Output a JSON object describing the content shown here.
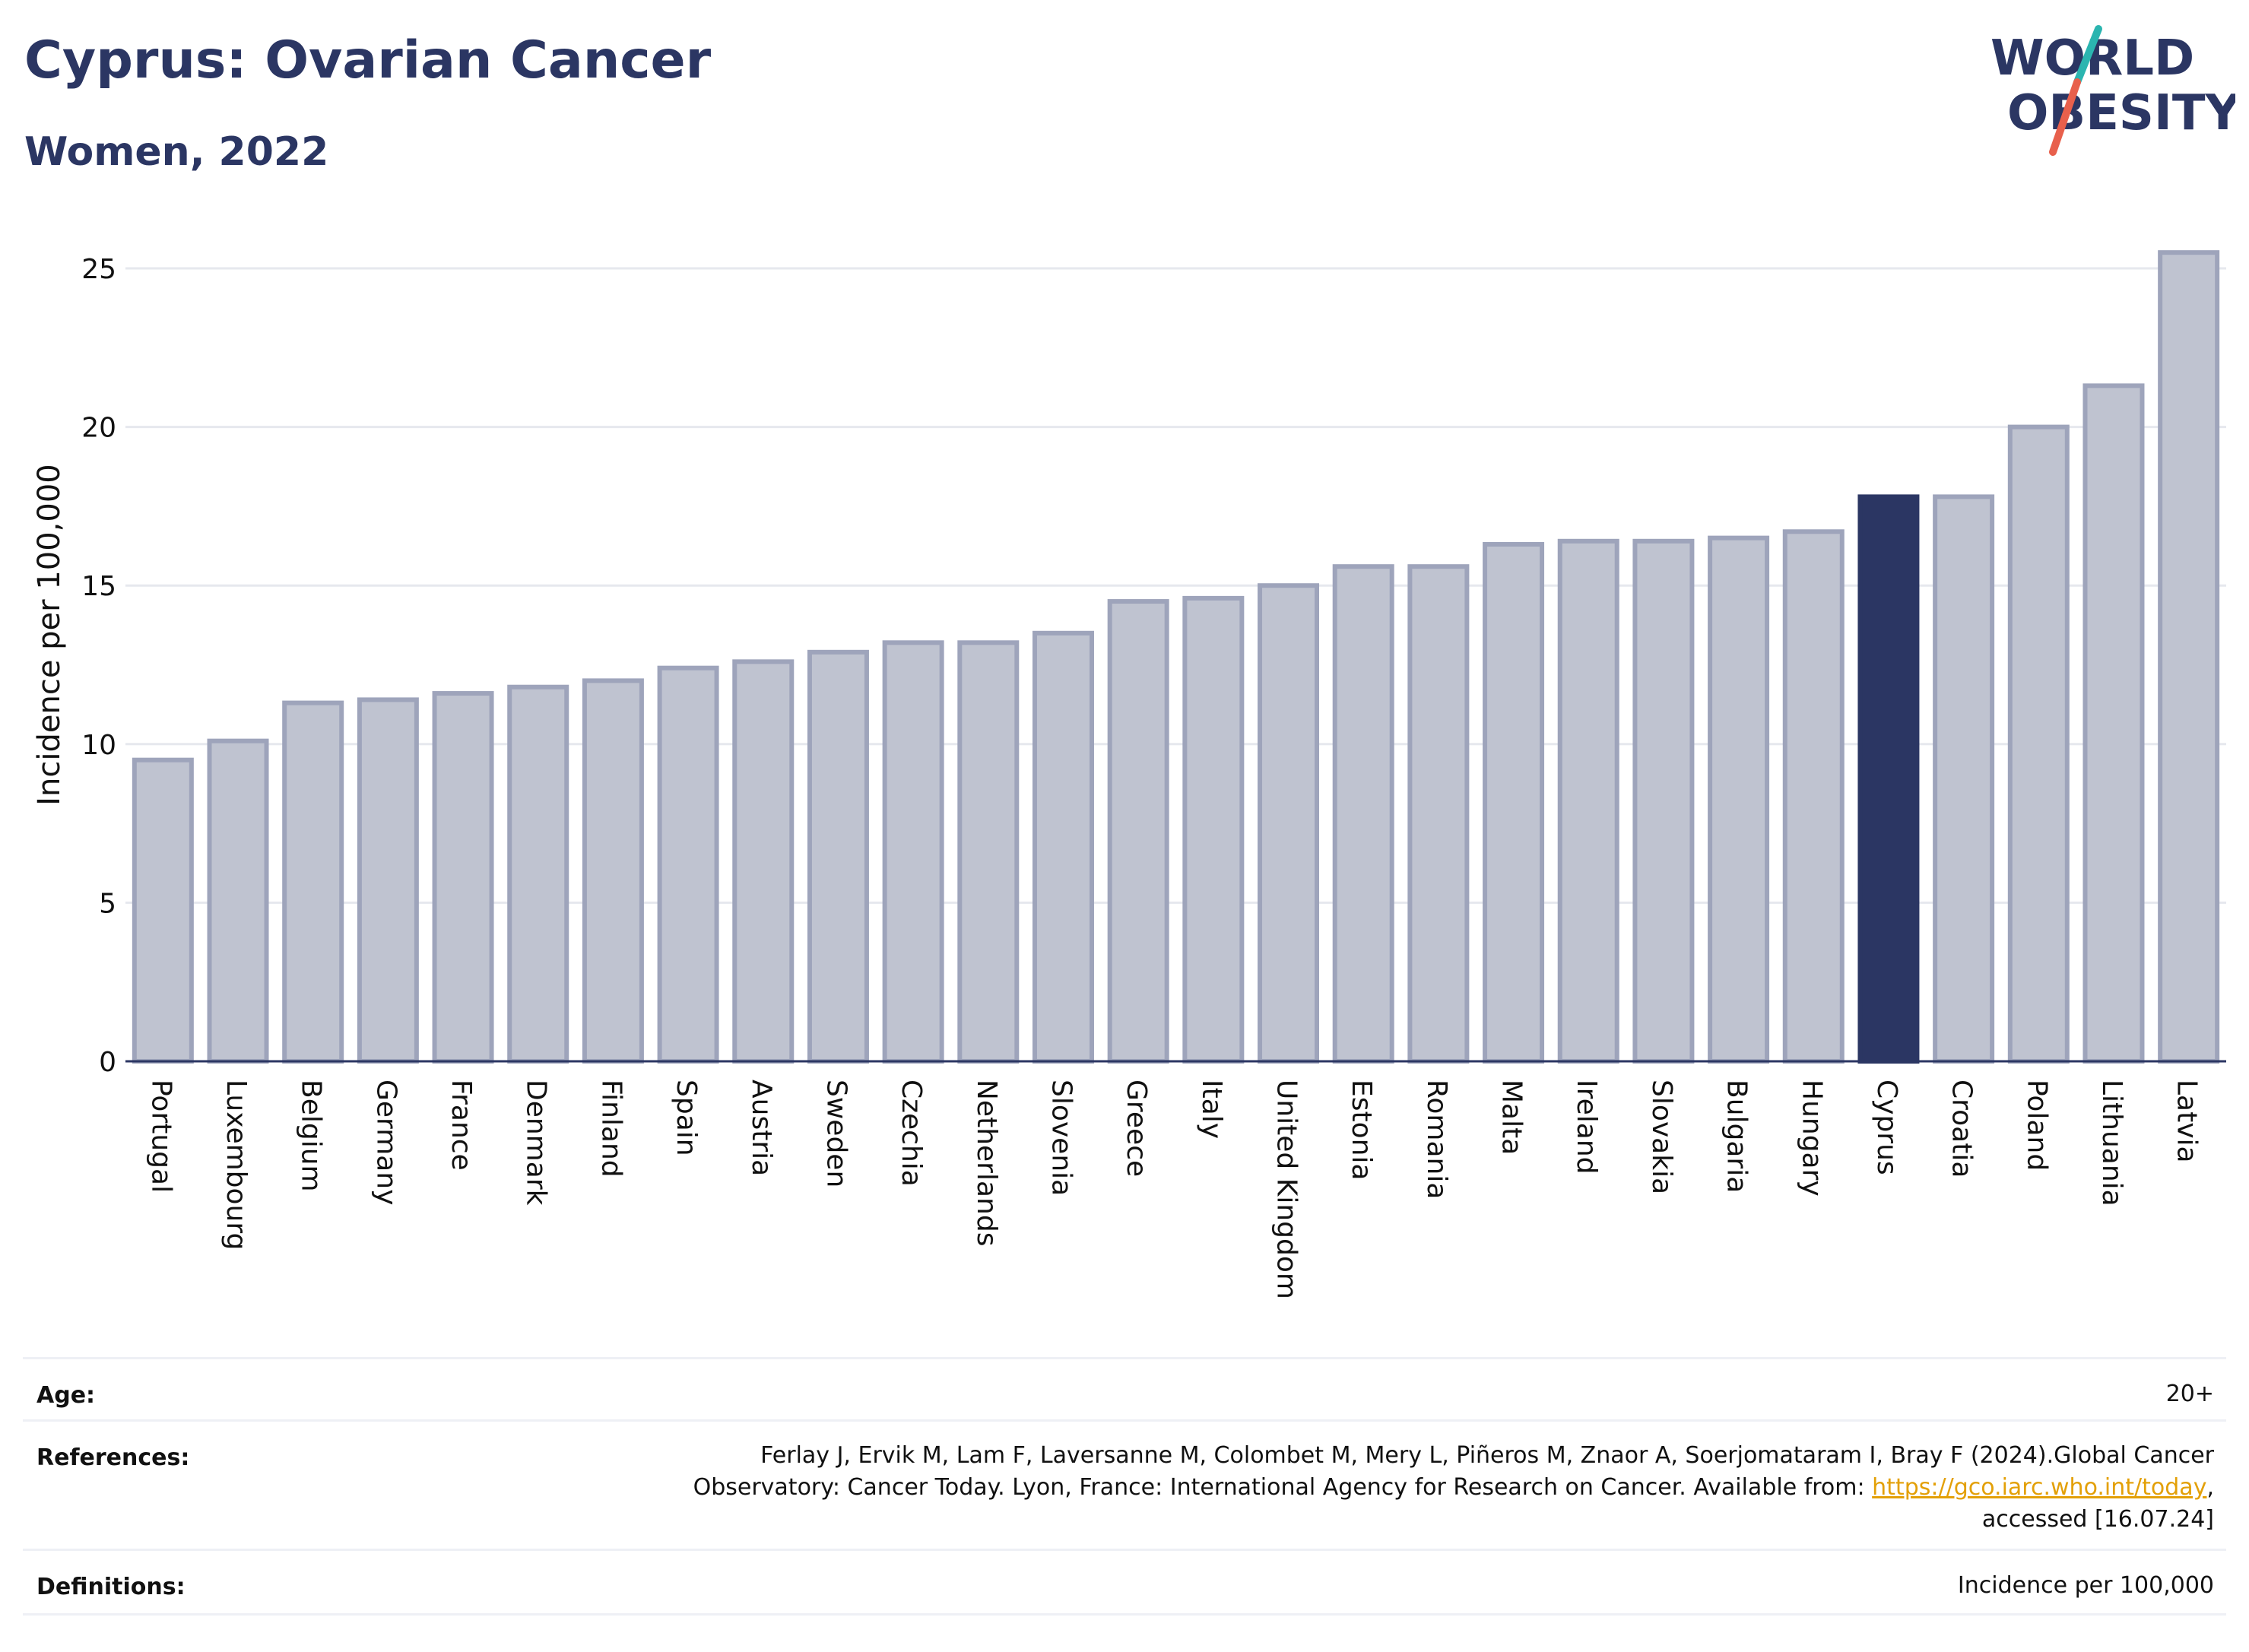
{
  "header": {
    "title": "Cyprus: Ovarian Cancer",
    "subtitle": "Women, 2022"
  },
  "logo": {
    "line1": "WORLD",
    "line2": "OBESITY",
    "colors": {
      "text": "#2b3663",
      "slash_top": "#2bb5b0",
      "slash_bottom": "#e8604c"
    }
  },
  "chart_data": {
    "type": "bar",
    "ylabel": "Incidence per 100,000",
    "xlabel": "",
    "ylim": [
      0,
      26
    ],
    "yticks": [
      0,
      5,
      10,
      15,
      20,
      25
    ],
    "grid": true,
    "highlight": "Cyprus",
    "colors": {
      "bar": "#bfc3d0",
      "bar_outline": "#9ea4bb",
      "highlight": "#2b3663",
      "grid": "#e6e8ee",
      "axis": "#2b3663"
    },
    "categories": [
      "Portugal",
      "Luxembourg",
      "Belgium",
      "Germany",
      "France",
      "Denmark",
      "Finland",
      "Spain",
      "Austria",
      "Sweden",
      "Czechia",
      "Netherlands",
      "Slovenia",
      "Greece",
      "Italy",
      "United Kingdom",
      "Estonia",
      "Romania",
      "Malta",
      "Ireland",
      "Slovakia",
      "Bulgaria",
      "Hungary",
      "Cyprus",
      "Croatia",
      "Poland",
      "Lithuania",
      "Latvia"
    ],
    "values": [
      9.5,
      10.1,
      11.3,
      11.4,
      11.6,
      11.8,
      12.0,
      12.4,
      12.6,
      12.9,
      13.2,
      13.2,
      13.5,
      14.5,
      14.6,
      15.0,
      15.6,
      15.6,
      16.3,
      16.4,
      16.4,
      16.5,
      16.7,
      17.8,
      17.8,
      20.0,
      21.3,
      25.5
    ]
  },
  "info": {
    "age_label": "Age:",
    "age_value": "20+",
    "references_label": "References:",
    "references_line1": "Ferlay J, Ervik M, Lam F, Laversanne M, Colombet M, Mery L, Piñeros M, Znaor A, Soerjomataram I, Bray F (2024).Global Cancer",
    "references_line2_prefix": "Observatory: Cancer Today. Lyon, France: International Agency for Research on Cancer. Available from: ",
    "references_link": "https://gco.iarc.who.int/today",
    "references_line2_suffix": ",",
    "references_line3": "accessed [16.07.24]",
    "definitions_label": "Definitions:",
    "definitions_value": "Incidence per 100,000"
  }
}
